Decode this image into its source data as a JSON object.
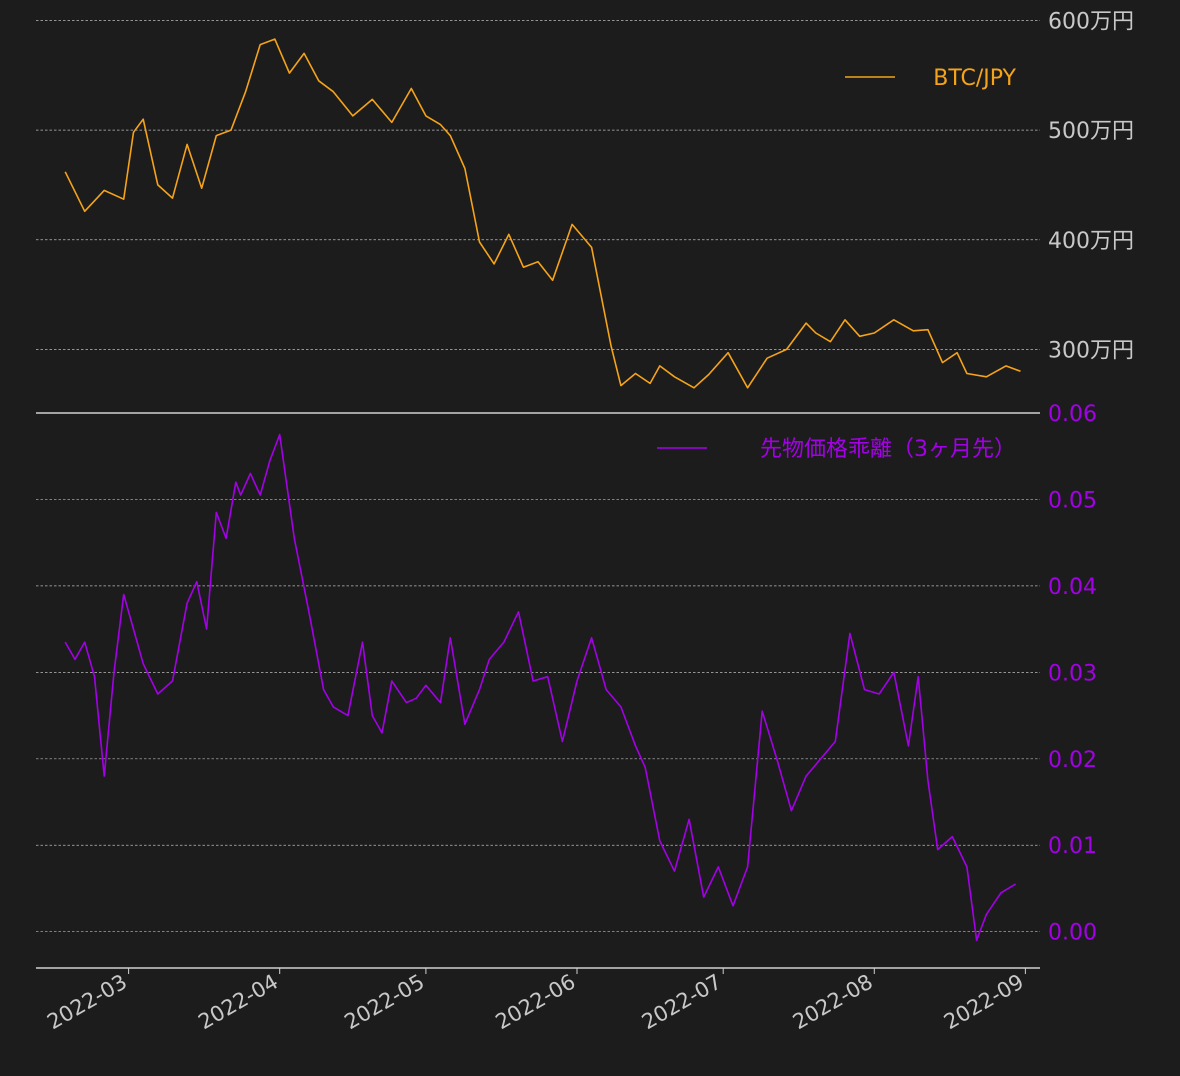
{
  "colors": {
    "background": "#1c1c1c",
    "btc_line": "#f5a31a",
    "basis_line": "#a400e8",
    "grid": "#bdbdbd",
    "axis_text": "#c8c8c8",
    "spine": "#d0d0d0"
  },
  "chart_data": [
    {
      "type": "line",
      "title": "",
      "ylabel": "",
      "ylim": [
        2420000,
        6050000
      ],
      "yticks": [
        {
          "value": 3000000,
          "label": "300万円"
        },
        {
          "value": 4000000,
          "label": "400万円"
        },
        {
          "value": 5000000,
          "label": "500万円"
        },
        {
          "value": 6000000,
          "label": "600万円"
        }
      ],
      "grid": true,
      "legend": "top-right",
      "series": [
        {
          "name": "BTC/JPY",
          "x": [
            "2022-02-16",
            "2022-02-20",
            "2022-02-24",
            "2022-02-28",
            "2022-03-02",
            "2022-03-04",
            "2022-03-07",
            "2022-03-10",
            "2022-03-13",
            "2022-03-16",
            "2022-03-19",
            "2022-03-22",
            "2022-03-25",
            "2022-03-28",
            "2022-03-31",
            "2022-04-03",
            "2022-04-06",
            "2022-04-09",
            "2022-04-12",
            "2022-04-16",
            "2022-04-20",
            "2022-04-24",
            "2022-04-28",
            "2022-05-01",
            "2022-05-04",
            "2022-05-06",
            "2022-05-09",
            "2022-05-12",
            "2022-05-15",
            "2022-05-18",
            "2022-05-21",
            "2022-05-24",
            "2022-05-27",
            "2022-05-31",
            "2022-06-04",
            "2022-06-08",
            "2022-06-10",
            "2022-06-13",
            "2022-06-16",
            "2022-06-18",
            "2022-06-21",
            "2022-06-25",
            "2022-06-28",
            "2022-07-02",
            "2022-07-06",
            "2022-07-10",
            "2022-07-14",
            "2022-07-18",
            "2022-07-20",
            "2022-07-23",
            "2022-07-26",
            "2022-07-29",
            "2022-08-01",
            "2022-08-05",
            "2022-08-09",
            "2022-08-12",
            "2022-08-15",
            "2022-08-18",
            "2022-08-20",
            "2022-08-24",
            "2022-08-28",
            "2022-08-31"
          ],
          "values": [
            4620000,
            4260000,
            4450000,
            4370000,
            4980000,
            5100000,
            4500000,
            4380000,
            4870000,
            4470000,
            4950000,
            5000000,
            5350000,
            5780000,
            5830000,
            5520000,
            5700000,
            5450000,
            5350000,
            5130000,
            5280000,
            5070000,
            5380000,
            5130000,
            5050000,
            4950000,
            4650000,
            3980000,
            3780000,
            4050000,
            3750000,
            3800000,
            3630000,
            4140000,
            3930000,
            3030000,
            2670000,
            2780000,
            2690000,
            2850000,
            2750000,
            2650000,
            2770000,
            2970000,
            2650000,
            2920000,
            3000000,
            3240000,
            3150000,
            3070000,
            3270000,
            3120000,
            3150000,
            3270000,
            3170000,
            3180000,
            2880000,
            2970000,
            2780000,
            2750000,
            2850000,
            2800000
          ]
        }
      ]
    },
    {
      "type": "line",
      "title": "",
      "ylabel": "",
      "ylim": [
        -0.0042,
        0.06
      ],
      "yticks": [
        {
          "value": 0.0,
          "label": "0.00"
        },
        {
          "value": 0.01,
          "label": "0.01"
        },
        {
          "value": 0.02,
          "label": "0.02"
        },
        {
          "value": 0.03,
          "label": "0.03"
        },
        {
          "value": 0.04,
          "label": "0.04"
        },
        {
          "value": 0.05,
          "label": "0.05"
        },
        {
          "value": 0.06,
          "label": "0.06"
        }
      ],
      "grid": true,
      "legend": "top-right",
      "xticks": [
        "2022-03",
        "2022-04",
        "2022-05",
        "2022-06",
        "2022-07",
        "2022-08",
        "2022-09"
      ],
      "series": [
        {
          "name": "先物価格乖離（3ヶ月先）",
          "x": [
            "2022-02-16",
            "2022-02-18",
            "2022-02-20",
            "2022-02-22",
            "2022-02-24",
            "2022-02-26",
            "2022-02-28",
            "2022-03-02",
            "2022-03-04",
            "2022-03-07",
            "2022-03-10",
            "2022-03-13",
            "2022-03-15",
            "2022-03-17",
            "2022-03-19",
            "2022-03-21",
            "2022-03-23",
            "2022-03-24",
            "2022-03-26",
            "2022-03-28",
            "2022-03-30",
            "2022-04-01",
            "2022-04-04",
            "2022-04-07",
            "2022-04-10",
            "2022-04-12",
            "2022-04-15",
            "2022-04-18",
            "2022-04-20",
            "2022-04-22",
            "2022-04-24",
            "2022-04-27",
            "2022-04-29",
            "2022-05-01",
            "2022-05-04",
            "2022-05-06",
            "2022-05-09",
            "2022-05-12",
            "2022-05-14",
            "2022-05-17",
            "2022-05-20",
            "2022-05-23",
            "2022-05-26",
            "2022-05-29",
            "2022-06-01",
            "2022-06-04",
            "2022-06-07",
            "2022-06-10",
            "2022-06-13",
            "2022-06-15",
            "2022-06-18",
            "2022-06-21",
            "2022-06-24",
            "2022-06-27",
            "2022-06-30",
            "2022-07-03",
            "2022-07-06",
            "2022-07-09",
            "2022-07-12",
            "2022-07-15",
            "2022-07-18",
            "2022-07-21",
            "2022-07-24",
            "2022-07-27",
            "2022-07-30",
            "2022-08-02",
            "2022-08-05",
            "2022-08-08",
            "2022-08-10",
            "2022-08-12",
            "2022-08-14",
            "2022-08-17",
            "2022-08-20",
            "2022-08-22",
            "2022-08-24",
            "2022-08-27",
            "2022-08-30"
          ],
          "values": [
            0.0335,
            0.0315,
            0.0335,
            0.0295,
            0.018,
            0.03,
            0.039,
            0.035,
            0.031,
            0.0275,
            0.029,
            0.038,
            0.0405,
            0.035,
            0.0485,
            0.0455,
            0.052,
            0.0505,
            0.053,
            0.0505,
            0.0545,
            0.0575,
            0.0455,
            0.037,
            0.028,
            0.026,
            0.025,
            0.0335,
            0.025,
            0.023,
            0.029,
            0.0265,
            0.027,
            0.0285,
            0.0265,
            0.034,
            0.024,
            0.028,
            0.0315,
            0.0335,
            0.037,
            0.029,
            0.0295,
            0.022,
            0.029,
            0.034,
            0.028,
            0.026,
            0.0215,
            0.019,
            0.0105,
            0.007,
            0.013,
            0.004,
            0.0075,
            0.003,
            0.0075,
            0.0255,
            0.02,
            0.014,
            0.018,
            0.02,
            0.022,
            0.0345,
            0.028,
            0.0275,
            0.03,
            0.0215,
            0.0295,
            0.0175,
            0.0095,
            0.011,
            0.0075,
            -0.001,
            0.002,
            0.0045,
            0.0055
          ]
        }
      ]
    }
  ]
}
